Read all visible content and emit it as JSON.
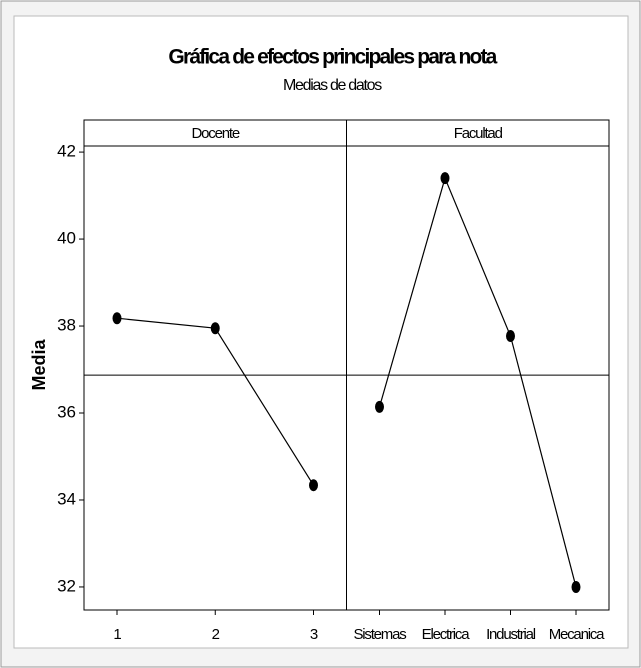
{
  "chart_data": {
    "type": "line",
    "title": "Gráfica de efectos principales para nota",
    "subtitle": "Medias de datos",
    "y_label": "Media",
    "color": "#000000",
    "ylim": [
      31.47,
      42.14
    ],
    "yticks": [
      32,
      34,
      36,
      38,
      40,
      42
    ],
    "reference_line": 36.87,
    "panels": [
      {
        "title": "Docente",
        "categories": [
          "1",
          "2",
          "3"
        ],
        "values": [
          38.18,
          37.95,
          34.34
        ]
      },
      {
        "title": "Facultad",
        "categories": [
          "Sistemas",
          "Electrica",
          "Industrial",
          "Mecanica"
        ],
        "values": [
          36.14,
          41.4,
          37.77,
          32.0
        ]
      }
    ]
  }
}
